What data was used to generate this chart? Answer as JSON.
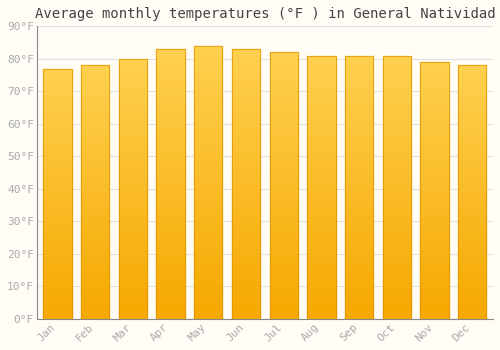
{
  "title": "Average monthly temperatures (°F ) in General Natividad",
  "months": [
    "Jan",
    "Feb",
    "Mar",
    "Apr",
    "May",
    "Jun",
    "Jul",
    "Aug",
    "Sep",
    "Oct",
    "Nov",
    "Dec"
  ],
  "values": [
    77.0,
    78.0,
    80.0,
    83.0,
    84.0,
    83.0,
    82.0,
    81.0,
    81.0,
    81.0,
    79.0,
    78.0
  ],
  "bar_color_bottom": "#F5A800",
  "bar_color_top": "#FFD050",
  "bar_edge_color": "#E09000",
  "background_color": "#FFFDF5",
  "grid_color": "#E0E0E0",
  "ylim": [
    0,
    90
  ],
  "yticks": [
    0,
    10,
    20,
    30,
    40,
    50,
    60,
    70,
    80,
    90
  ],
  "ytick_labels": [
    "0°F",
    "10°F",
    "20°F",
    "30°F",
    "40°F",
    "50°F",
    "60°F",
    "70°F",
    "80°F",
    "90°F"
  ],
  "title_fontsize": 10,
  "tick_fontsize": 8,
  "tick_color": "#AAAAAA",
  "bar_width": 0.75
}
